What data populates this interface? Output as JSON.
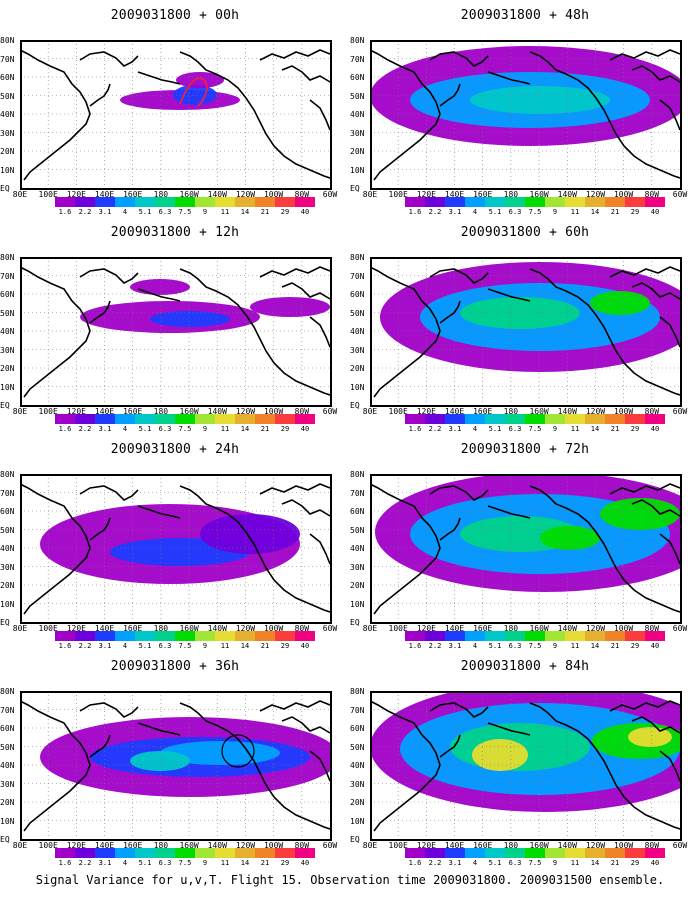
{
  "panels": [
    {
      "title": "2009031800 + 00h",
      "level": 0
    },
    {
      "title": "2009031800 + 48h",
      "level": 4
    },
    {
      "title": "2009031800 + 12h",
      "level": 1
    },
    {
      "title": "2009031800 + 60h",
      "level": 5
    },
    {
      "title": "2009031800 + 24h",
      "level": 2
    },
    {
      "title": "2009031800 + 72h",
      "level": 6
    },
    {
      "title": "2009031800 + 36h",
      "level": 3
    },
    {
      "title": "2009031800 + 84h",
      "level": 7
    }
  ],
  "lat_labels": [
    "80N",
    "70N",
    "60N",
    "50N",
    "40N",
    "30N",
    "20N",
    "10N",
    "EQ"
  ],
  "lon_labels": [
    "80E",
    "100E",
    "120E",
    "140E",
    "160E",
    "180",
    "160W",
    "140W",
    "120W",
    "100W",
    "80W",
    "60W"
  ],
  "colorbar": {
    "labels": [
      "1.6",
      "2.2",
      "3.1",
      "4",
      "5.1",
      "6.3",
      "7.5",
      "9",
      "11",
      "14",
      "21",
      "29",
      "40"
    ],
    "colors": [
      "#a000c8",
      "#6e00dc",
      "#1e3cff",
      "#00a0ff",
      "#00c8c8",
      "#00d28c",
      "#00dc00",
      "#a0e632",
      "#e6dc32",
      "#e6af2d",
      "#f08228",
      "#fa3c3c",
      "#f00082"
    ]
  },
  "caption": "Signal Variance for u,v,T. Flight 15. Observation time 2009031800. 2009031500 ensemble."
}
